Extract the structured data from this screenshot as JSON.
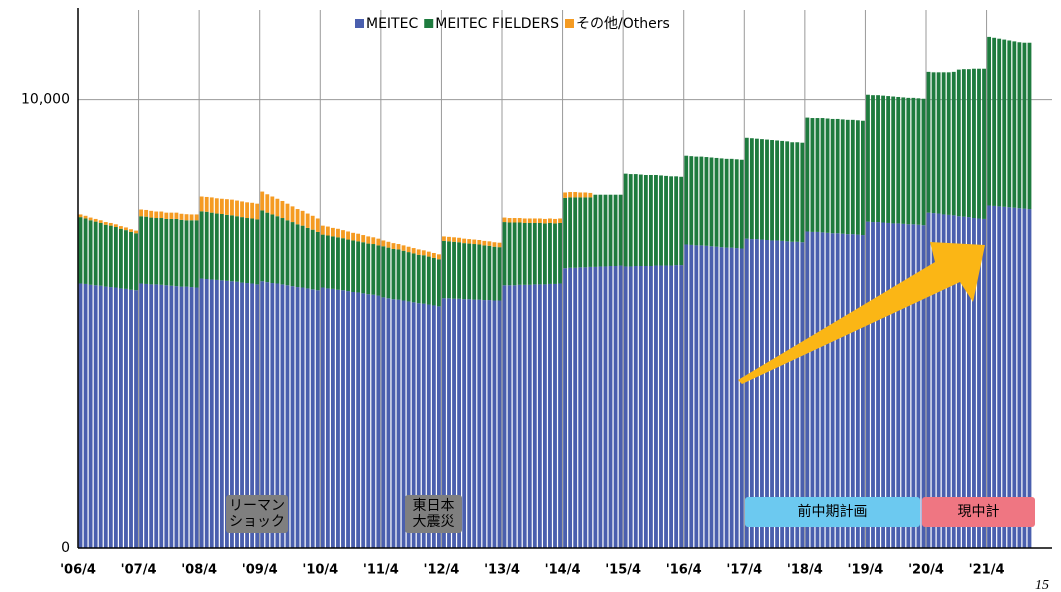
{
  "chart_data": {
    "type": "bar",
    "stacked": true,
    "categories": [
      "'06/4",
      null,
      null,
      null,
      null,
      null,
      null,
      null,
      null,
      null,
      null,
      null,
      "'07/4",
      null,
      null,
      null,
      null,
      null,
      null,
      null,
      null,
      null,
      null,
      null,
      "'08/4",
      null,
      null,
      null,
      null,
      null,
      null,
      null,
      null,
      null,
      null,
      null,
      "'09/4",
      null,
      null,
      null,
      null,
      null,
      null,
      null,
      null,
      null,
      null,
      null,
      "'10/4",
      null,
      null,
      null,
      null,
      null,
      null,
      null,
      null,
      null,
      null,
      null,
      "'11/4",
      null,
      null,
      null,
      null,
      null,
      null,
      null,
      null,
      null,
      null,
      null,
      "'12/4",
      null,
      null,
      null,
      null,
      null,
      null,
      null,
      null,
      null,
      null,
      null,
      "'13/4",
      null,
      null,
      null,
      null,
      null,
      null,
      null,
      null,
      null,
      null,
      null,
      "'14/4",
      null,
      null,
      null,
      null,
      null,
      null,
      null,
      null,
      null,
      null,
      null,
      "'15/4",
      null,
      null,
      null,
      null,
      null,
      null,
      null,
      null,
      null,
      null,
      null,
      "'16/4",
      null,
      null,
      null,
      null,
      null,
      null,
      null,
      null,
      null,
      null,
      null,
      "'17/4",
      null,
      null,
      null,
      null,
      null,
      null,
      null,
      null,
      null,
      null,
      null,
      "'18/4",
      null,
      null,
      null,
      null,
      null,
      null,
      null,
      null,
      null,
      null,
      null,
      "'19/4",
      null,
      null,
      null,
      null,
      null,
      null,
      null,
      null,
      null,
      null,
      null,
      "'20/4",
      null,
      null,
      null,
      null,
      null,
      null,
      null,
      null,
      null,
      null,
      null,
      "'21/4",
      null,
      null,
      null,
      null,
      null,
      null,
      null,
      null
    ],
    "series": [
      {
        "name": "MEITEC",
        "color": "#4a5fae",
        "values": [
          5900,
          5890,
          5870,
          5860,
          5850,
          5830,
          5820,
          5810,
          5790,
          5780,
          5760,
          5750,
          5900,
          5890,
          5880,
          5880,
          5870,
          5860,
          5850,
          5840,
          5830,
          5830,
          5820,
          5810,
          6010,
          6000,
          5990,
          5980,
          5970,
          5960,
          5950,
          5940,
          5920,
          5910,
          5900,
          5880,
          5950,
          5930,
          5910,
          5900,
          5880,
          5860,
          5840,
          5820,
          5810,
          5790,
          5770,
          5750,
          5810,
          5790,
          5780,
          5760,
          5750,
          5730,
          5710,
          5700,
          5680,
          5660,
          5650,
          5630,
          5590,
          5570,
          5550,
          5540,
          5520,
          5500,
          5480,
          5460,
          5450,
          5430,
          5410,
          5390,
          5570,
          5570,
          5560,
          5560,
          5550,
          5550,
          5540,
          5540,
          5530,
          5530,
          5520,
          5520,
          5860,
          5860,
          5860,
          5870,
          5870,
          5870,
          5880,
          5880,
          5880,
          5890,
          5890,
          5900,
          6240,
          6250,
          6250,
          6260,
          6260,
          6270,
          6270,
          6280,
          6280,
          6290,
          6290,
          6300,
          6280,
          6280,
          6290,
          6290,
          6290,
          6290,
          6300,
          6300,
          6300,
          6300,
          6310,
          6310,
          6770,
          6760,
          6750,
          6750,
          6740,
          6730,
          6720,
          6710,
          6700,
          6700,
          6690,
          6680,
          6900,
          6890,
          6890,
          6880,
          6870,
          6860,
          6860,
          6850,
          6840,
          6830,
          6830,
          6820,
          7060,
          7050,
          7050,
          7040,
          7030,
          7020,
          7020,
          7010,
          7000,
          7000,
          6990,
          6980,
          7280,
          7270,
          7270,
          7260,
          7250,
          7240,
          7240,
          7230,
          7220,
          7220,
          7210,
          7200,
          7480,
          7470,
          7460,
          7440,
          7430,
          7420,
          7400,
          7390,
          7380,
          7360,
          7350,
          7340,
          7640,
          7630,
          7620,
          7610,
          7600,
          7590,
          7580,
          7570,
          7560
        ]
      },
      {
        "name": "MEITEC FIELDERS",
        "color": "#1e7b3e",
        "values": [
          1480,
          1460,
          1440,
          1420,
          1400,
          1380,
          1370,
          1350,
          1330,
          1310,
          1290,
          1270,
          1500,
          1500,
          1490,
          1480,
          1490,
          1480,
          1490,
          1500,
          1490,
          1480,
          1490,
          1500,
          1500,
          1500,
          1490,
          1480,
          1480,
          1470,
          1470,
          1460,
          1460,
          1450,
          1450,
          1450,
          1580,
          1550,
          1530,
          1500,
          1480,
          1450,
          1430,
          1400,
          1380,
          1350,
          1330,
          1300,
          1180,
          1180,
          1170,
          1170,
          1160,
          1150,
          1150,
          1140,
          1140,
          1130,
          1130,
          1120,
          1140,
          1130,
          1120,
          1120,
          1110,
          1100,
          1090,
          1080,
          1080,
          1070,
          1060,
          1050,
          1280,
          1270,
          1270,
          1260,
          1250,
          1240,
          1240,
          1230,
          1220,
          1210,
          1200,
          1190,
          1410,
          1400,
          1400,
          1390,
          1380,
          1380,
          1370,
          1370,
          1360,
          1360,
          1350,
          1350,
          1570,
          1570,
          1570,
          1560,
          1560,
          1550,
          1610,
          1600,
          1600,
          1590,
          1590,
          1580,
          2070,
          2060,
          2050,
          2040,
          2030,
          2030,
          2020,
          2010,
          2000,
          1990,
          1980,
          1970,
          1980,
          1980,
          1980,
          1980,
          1980,
          1980,
          1980,
          1980,
          1980,
          1980,
          1980,
          1980,
          2250,
          2250,
          2240,
          2240,
          2240,
          2240,
          2230,
          2230,
          2230,
          2220,
          2220,
          2220,
          2540,
          2540,
          2540,
          2550,
          2550,
          2550,
          2550,
          2550,
          2550,
          2550,
          2550,
          2550,
          2830,
          2830,
          2830,
          2830,
          2830,
          2830,
          2820,
          2820,
          2820,
          2820,
          2820,
          2820,
          3140,
          3140,
          3150,
          3170,
          3180,
          3200,
          3270,
          3290,
          3300,
          3330,
          3340,
          3350,
          3760,
          3750,
          3740,
          3730,
          3720,
          3710,
          3700,
          3700,
          3710
        ]
      },
      {
        "name": "その他/Others",
        "color": "#f59b22",
        "values": [
          60,
          60,
          60,
          60,
          60,
          60,
          60,
          60,
          60,
          60,
          60,
          60,
          150,
          150,
          150,
          145,
          145,
          140,
          140,
          140,
          135,
          135,
          130,
          130,
          330,
          330,
          340,
          340,
          340,
          350,
          350,
          350,
          350,
          350,
          350,
          350,
          420,
          410,
          400,
          390,
          380,
          370,
          350,
          340,
          330,
          320,
          310,
          300,
          200,
          200,
          190,
          190,
          180,
          180,
          170,
          170,
          160,
          160,
          150,
          150,
          130,
          130,
          130,
          120,
          120,
          120,
          120,
          120,
          110,
          110,
          110,
          110,
          100,
          100,
          100,
          100,
          100,
          100,
          100,
          100,
          100,
          100,
          100,
          100,
          100,
          100,
          100,
          100,
          100,
          100,
          100,
          100,
          100,
          100,
          100,
          100,
          120,
          120,
          120,
          110,
          110,
          100,
          0,
          0,
          0,
          0,
          0,
          0,
          0,
          0,
          0,
          0,
          0,
          0,
          0,
          0,
          0,
          0,
          0,
          0,
          0,
          0,
          0,
          0,
          0,
          0,
          0,
          0,
          0,
          0,
          0,
          0,
          0,
          0,
          0,
          0,
          0,
          0,
          0,
          0,
          0,
          0,
          0,
          0,
          0,
          0,
          0,
          0,
          0,
          0,
          0,
          0,
          0,
          0,
          0,
          0,
          0,
          0,
          0,
          0,
          0,
          0,
          0,
          0,
          0,
          0,
          0,
          0,
          0,
          0,
          0,
          0,
          0,
          0,
          0,
          0,
          0,
          0,
          0,
          0,
          0,
          0,
          0,
          0,
          0,
          0,
          0,
          0,
          0
        ]
      }
    ],
    "ylim": [
      0,
      12000
    ],
    "yticks": [
      0,
      {
        "value": 10000,
        "label": "10,000"
      }
    ],
    "grid": true,
    "legend": "top",
    "annotations": [
      [
        "リーマン",
        "ショック"
      ],
      [
        "東日本",
        "大震災"
      ],
      "前中期計画",
      "現中計"
    ],
    "page_number": "15"
  }
}
